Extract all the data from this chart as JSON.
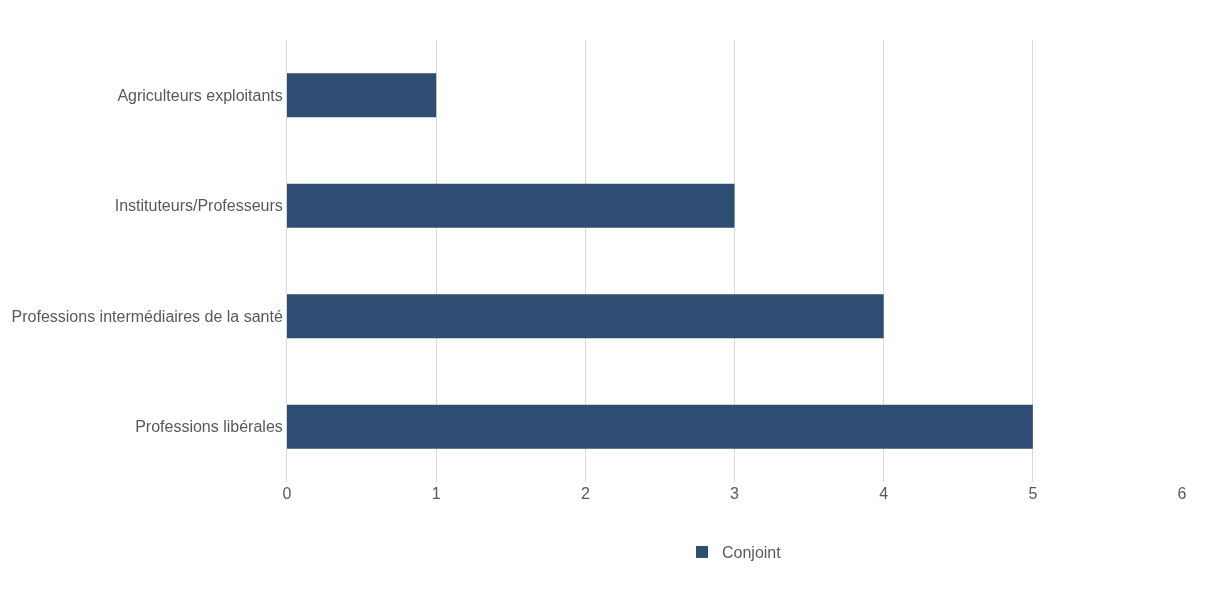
{
  "chart_data": {
    "type": "bar",
    "orientation": "horizontal",
    "categories": [
      "Agriculteurs exploitants",
      "Instituteurs/Professeurs",
      "Professions intermédiaires de la santé",
      "Professions libérales"
    ],
    "series": [
      {
        "name": "Conjoint",
        "color": "#2e4d73",
        "values": [
          1,
          3,
          4,
          5
        ]
      }
    ],
    "xlim": [
      0,
      6
    ],
    "xticks": [
      0,
      1,
      2,
      3,
      4,
      5,
      6
    ],
    "grid": "x",
    "legend": "bottom"
  }
}
